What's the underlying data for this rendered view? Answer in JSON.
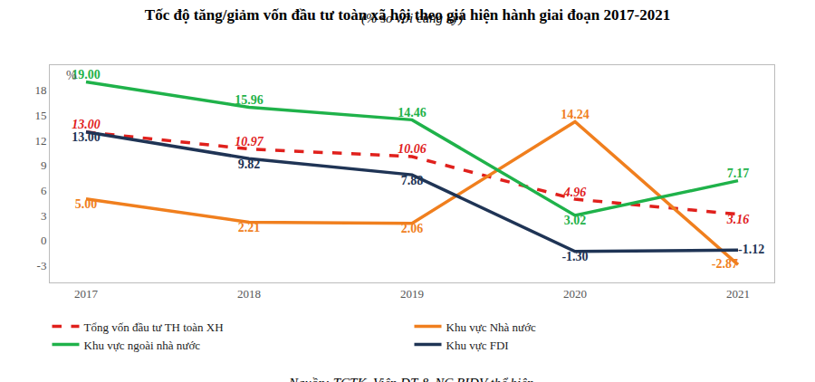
{
  "chart_data": {
    "type": "line",
    "title": "Tốc độ tăng/giảm vốn đầu tư toàn xã hội theo giá hiện hành giai đoạn 2017-2021",
    "subtitle": "(% so với cùng kỳ)",
    "source": "Nguồn: TCTK, Viện ĐT & NC BIDV thể hiện.",
    "y_label": "%",
    "categories": [
      "2017",
      "2018",
      "2019",
      "2020",
      "2021"
    ],
    "ylim": [
      -5,
      21
    ],
    "yticks": [
      -3,
      0,
      3,
      6,
      9,
      12,
      15,
      18
    ],
    "grid": false,
    "legend": "bottom",
    "data_labels": true,
    "series": [
      {
        "name": "Tổng vốn đầu tư TH toàn XH",
        "color": "#e0201c",
        "line_style": "dashed",
        "values": [
          13.0,
          10.97,
          10.06,
          4.96,
          3.16
        ],
        "value_labels": [
          "13.00",
          "10.97",
          "10.06",
          "4.96",
          "3.16"
        ]
      },
      {
        "name": "Khu vực Nhà nước",
        "color": "#f07f1e",
        "line_style": "solid",
        "values": [
          5.0,
          2.21,
          2.06,
          14.24,
          -2.87
        ],
        "value_labels": [
          "5.00",
          "2.21",
          "2.06",
          "14.24",
          "-2.87"
        ]
      },
      {
        "name": "Khu vực ngoài nhà nước",
        "color": "#1fb24a",
        "line_style": "solid",
        "values": [
          19.0,
          15.96,
          14.46,
          3.02,
          7.17
        ],
        "value_labels": [
          "19.00",
          "15.96",
          "14.46",
          "3.02",
          "7.17"
        ]
      },
      {
        "name": "Khu vực FDI",
        "color": "#1f3455",
        "line_style": "solid",
        "values": [
          13.0,
          9.82,
          7.88,
          -1.3,
          -1.12
        ],
        "value_labels": [
          "13.00",
          "9.82",
          "7.88",
          "-1.30",
          "-1.12"
        ]
      }
    ]
  }
}
